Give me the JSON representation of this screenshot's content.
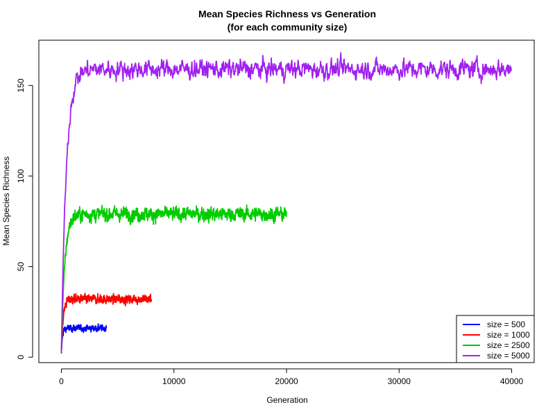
{
  "chart_data": {
    "type": "line",
    "title_line1": "Mean Species Richness vs Generation",
    "title_line2": "(for each community size)",
    "xlabel": "Generation",
    "ylabel": "Mean Species Richness",
    "xlim": [
      -2000,
      42000
    ],
    "ylim": [
      -3,
      175
    ],
    "x_ticks": [
      0,
      10000,
      20000,
      30000,
      40000
    ],
    "x_tick_labels": [
      "0",
      "10000",
      "20000",
      "30000",
      "40000"
    ],
    "y_ticks": [
      0,
      50,
      100,
      150
    ],
    "y_tick_labels": [
      "0",
      "50",
      "100",
      "150"
    ],
    "grid": false,
    "legend_position": "bottom-right",
    "series": [
      {
        "name": "size = 500",
        "color": "#0000ff",
        "max_gen": 4000,
        "equilibrium": 16,
        "start": 2,
        "tau": 90,
        "noise": 1.0
      },
      {
        "name": "size = 1000",
        "color": "#ff0000",
        "max_gen": 8000,
        "equilibrium": 32,
        "start": 2,
        "tau": 160,
        "noise": 1.4
      },
      {
        "name": "size = 2500",
        "color": "#00cc00",
        "max_gen": 20000,
        "equilibrium": 79,
        "start": 2,
        "tau": 300,
        "noise": 2.2
      },
      {
        "name": "size = 5000",
        "color": "#a020f0",
        "max_gen": 40000,
        "equilibrium": 159,
        "start": 2,
        "tau": 420,
        "noise": 3.0
      }
    ]
  }
}
